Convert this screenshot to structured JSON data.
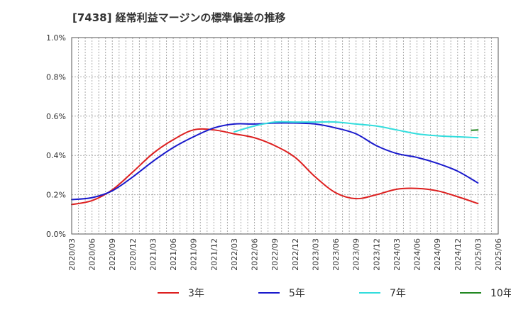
{
  "chart_data": {
    "type": "line",
    "title": "[7438]  経常利益マージンの標準偏差の推移",
    "xlabel": "",
    "ylabel": "",
    "ylim": [
      0,
      0.01
    ],
    "grid": true,
    "legend_position": "bottom",
    "x": [
      "2020/03",
      "2020/06",
      "2020/09",
      "2020/12",
      "2021/03",
      "2021/06",
      "2021/09",
      "2021/12",
      "2022/03",
      "2022/06",
      "2022/09",
      "2022/12",
      "2023/03",
      "2023/06",
      "2023/09",
      "2023/12",
      "2024/03",
      "2024/06",
      "2024/09",
      "2024/12",
      "2025/03",
      "2025/06"
    ],
    "y_ticks": [
      {
        "value": 0.0,
        "label": "0.0%"
      },
      {
        "value": 0.002,
        "label": "0.2%"
      },
      {
        "value": 0.004,
        "label": "0.4%"
      },
      {
        "value": 0.006,
        "label": "0.6%"
      },
      {
        "value": 0.008,
        "label": "0.8%"
      },
      {
        "value": 0.01,
        "label": "1.0%"
      }
    ],
    "series": [
      {
        "name": "3年",
        "color": "#dd2020",
        "values": [
          0.0015,
          0.0017,
          0.00225,
          0.00315,
          0.0041,
          0.0048,
          0.0053,
          0.0053,
          0.0051,
          0.0049,
          0.0045,
          0.0039,
          0.0029,
          0.0021,
          0.0018,
          0.002,
          0.00228,
          0.00232,
          0.0022,
          0.0019,
          0.00155,
          null
        ]
      },
      {
        "name": "5年",
        "color": "#1a1acc",
        "values": [
          0.00175,
          0.00185,
          0.0022,
          0.0029,
          0.0037,
          0.0044,
          0.00495,
          0.0054,
          0.0056,
          0.0056,
          0.00565,
          0.00565,
          0.0056,
          0.0054,
          0.0051,
          0.0045,
          0.0041,
          0.0039,
          0.0036,
          0.0032,
          0.0026,
          null
        ]
      },
      {
        "name": "7年",
        "color": "#33dddd",
        "values": [
          null,
          null,
          null,
          null,
          null,
          null,
          null,
          null,
          0.0052,
          0.0055,
          0.0057,
          0.0057,
          0.0057,
          0.0057,
          0.0056,
          0.0055,
          0.0053,
          0.0051,
          0.005,
          0.00495,
          0.0049,
          null
        ]
      },
      {
        "name": "10年",
        "color": "#228822",
        "values": [
          null,
          null,
          null,
          null,
          null,
          null,
          null,
          null,
          null,
          null,
          null,
          null,
          null,
          null,
          null,
          null,
          null,
          null,
          null,
          null,
          0.0053,
          null
        ]
      }
    ]
  }
}
